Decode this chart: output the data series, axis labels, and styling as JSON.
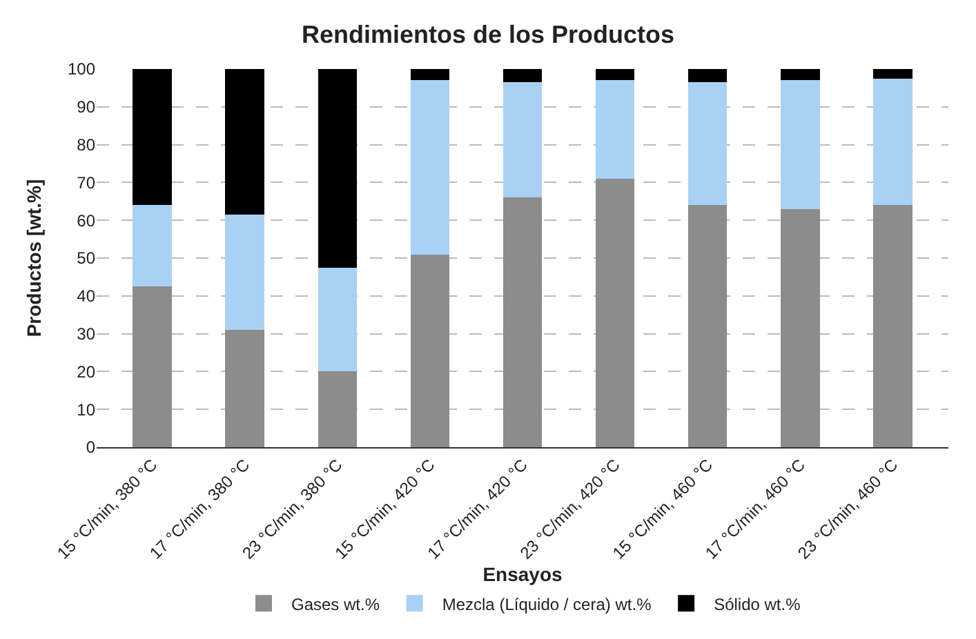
{
  "chart_data": {
    "type": "bar",
    "stacked": true,
    "title": "Rendimientos de los Productos",
    "xlabel": "Ensayos",
    "ylabel": "Productos [wt.%]",
    "categories": [
      "15 °C/min, 380 °C",
      "17 °C/min, 380 °C",
      "23 °C/min, 380 °C",
      "15 °C/min, 420 °C",
      "17 °C/min, 420 °C",
      "23 °C/min, 420 °C",
      "15 °C/min, 460 °C",
      "17 °C/min, 460 °C",
      "23 °C/min, 460 °C"
    ],
    "series": [
      {
        "name": "Gases wt.%",
        "color": "#8c8c8c",
        "values": [
          42.5,
          31,
          20,
          51,
          66,
          71,
          64,
          63,
          64
        ]
      },
      {
        "name": "Mezcla (Líquido / cera) wt.%",
        "color": "#a9d1f5",
        "values": [
          21.5,
          30.5,
          27.5,
          46,
          30.5,
          26,
          32.5,
          34,
          33.5
        ]
      },
      {
        "name": "Sólido wt.%",
        "color": "#000000",
        "values": [
          36,
          38.5,
          52.5,
          3,
          3.5,
          3,
          3.5,
          3,
          2.5
        ]
      }
    ],
    "ylim": [
      0,
      100
    ],
    "yticks": [
      0,
      10,
      20,
      30,
      40,
      50,
      60,
      70,
      80,
      90,
      100
    ],
    "grid": "y",
    "legend": "bottom"
  }
}
